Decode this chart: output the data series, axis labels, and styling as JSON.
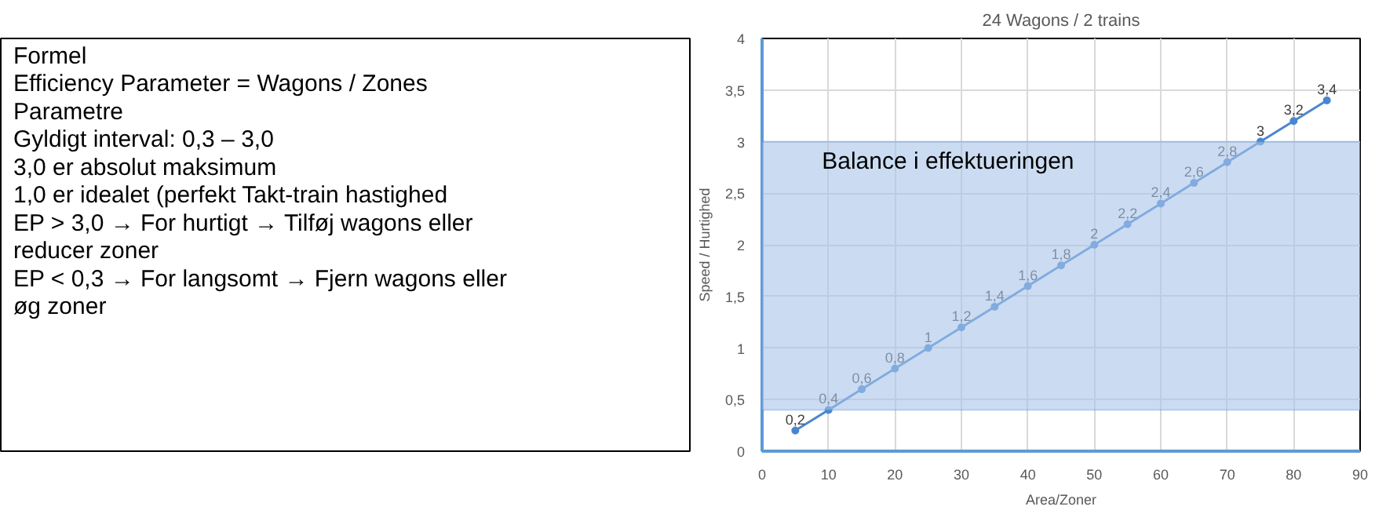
{
  "chart_data": [
    {
      "type": "other",
      "annotations": [
        "Formel",
        "Efficiency Parameter = Wagons / Zones",
        "Parametre",
        "Gyldigt interval: 0,3 – 3,0",
        "3,0 er absolut maksimum",
        "1,0 er idealet (perfekt Takt-train hastighed",
        "EP > 3,0 → For hurtigt → Tilføj wagons eller reducer zoner",
        "EP < 0,3 → For langsomt → Fjern wagons eller øg zoner"
      ]
    },
    {
      "type": "line",
      "title": "24 Wagons / 2 trains",
      "xlabel": "Area/Zoner",
      "ylabel": "Speed / Hurtighed",
      "x": [
        5,
        10,
        15,
        20,
        25,
        30,
        35,
        40,
        45,
        50,
        55,
        60,
        65,
        70,
        75,
        80,
        85
      ],
      "series": [
        {
          "color": "#4a86d0",
          "values": [
            0.2,
            0.4,
            0.6,
            0.8,
            1.0,
            1.2,
            1.4,
            1.6,
            1.8,
            2.0,
            2.2,
            2.4,
            2.6,
            2.8,
            3.0,
            3.2,
            3.4
          ],
          "value_labels": [
            "0,2",
            "0,4",
            "0,6",
            "0,8",
            "1",
            "1,2",
            "1,4",
            "1,6",
            "1,8",
            "2",
            "2,2",
            "2,4",
            "2,6",
            "2,8",
            "3",
            "3,2",
            "3,4"
          ]
        }
      ],
      "marker": "circle",
      "line_style": "solid",
      "grid": true,
      "xlim": [
        0,
        90
      ],
      "xticks": [
        0,
        10,
        20,
        30,
        40,
        50,
        60,
        70,
        80,
        90
      ],
      "ylim": [
        0,
        4
      ],
      "yticks": [
        0,
        {
          "value": 0.5,
          "label": "0,5"
        },
        1,
        {
          "value": 1.5,
          "label": "1,5"
        },
        2,
        {
          "value": 2.5,
          "label": "2,5"
        },
        3,
        {
          "value": 3.5,
          "label": "3,5"
        },
        4
      ],
      "bands": [
        {
          "axis": "y",
          "from": 0.4,
          "to": 3.0,
          "label": "Balance i effektueringen",
          "color": "#a9c4ea"
        }
      ]
    }
  ]
}
